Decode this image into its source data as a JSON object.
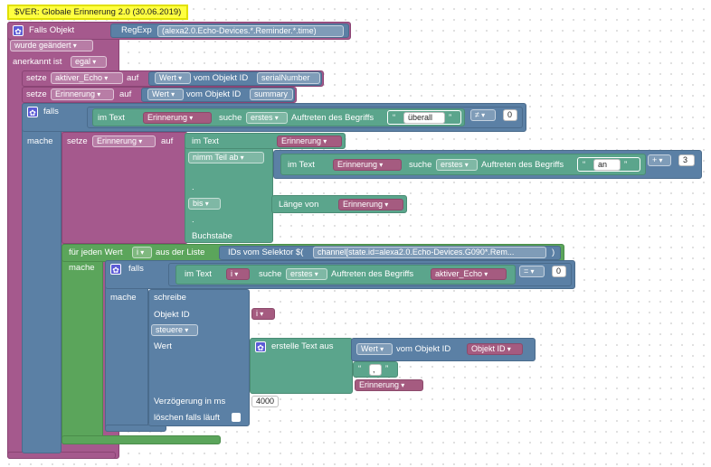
{
  "comment": "$VER: Globale Erinnerung 2.0 (30.06.2019)",
  "trigger": {
    "title": "Falls Objekt",
    "regexp_label": "RegExp",
    "regexp_value": "(alexa2.0.Echo-Devices.*.Reminder.*.time)",
    "condition": "wurde geändert",
    "ack_label": "anerkannt ist",
    "ack_value": "egal"
  },
  "set1": {
    "kw": "setze",
    "var": "aktiver_Echo",
    "auf": "auf",
    "prop": "Wert",
    "vom": "vom Objekt ID",
    "id": "serialNumber"
  },
  "set2": {
    "kw": "setze",
    "var": "Erinnerung",
    "auf": "auf",
    "prop": "Wert",
    "vom": "vom Objekt ID",
    "id": "summary"
  },
  "if1": {
    "falls": "falls",
    "mache": "mache",
    "in_text": "im Text",
    "var": "Erinnerung",
    "suche": "suche",
    "mode": "erstes",
    "auftreten": "Auftreten des Begriffs",
    "term": "überall",
    "op": "≠",
    "num": "0"
  },
  "set3": {
    "kw": "setze",
    "var": "Erinnerung",
    "auf": "auf",
    "in_text": "im Text",
    "var2": "Erinnerung",
    "nimm": "nimm Teil ab",
    "inner_in_text": "im Text",
    "inner_var": "Erinnerung",
    "inner_suche": "suche",
    "inner_mode": "erstes",
    "inner_auftreten": "Auftreten des Begriffs",
    "inner_term": "an",
    "plus": "+",
    "plus_num": "3",
    "dot1": ".",
    "bis": "bis",
    "laenge": "Länge von",
    "laenge_var": "Erinnerung",
    "dot2": ".",
    "buchstabe": "Buchstabe"
  },
  "loop": {
    "title": "für jeden Wert",
    "var": "i",
    "from": "aus der Liste",
    "selector": "IDs vom Selektor $(",
    "selector_value": "channel[state.id=alexa2.0.Echo-Devices.G090*.Rem...",
    "close": ")",
    "mache": "mache"
  },
  "if2": {
    "falls": "falls",
    "mache": "mache",
    "in_text": "im Text",
    "var": "i",
    "suche": "suche",
    "mode": "erstes",
    "auftreten": "Auftreten des Begriffs",
    "term": "aktiver_Echo",
    "op": "=",
    "num": "0"
  },
  "write": {
    "title": "schreibe",
    "obj_label": "Objekt ID",
    "obj_var": "i",
    "mode": "steuere",
    "wert": "Wert",
    "create": "erstelle Text aus",
    "prop": "Wert",
    "vom": "vom Objekt ID",
    "obj_id": "Objekt ID",
    "sep": ",",
    "var3": "Erinnerung",
    "delay_label": "Verzögerung in ms",
    "delay": "4000",
    "clear": "löschen falls läuft"
  }
}
